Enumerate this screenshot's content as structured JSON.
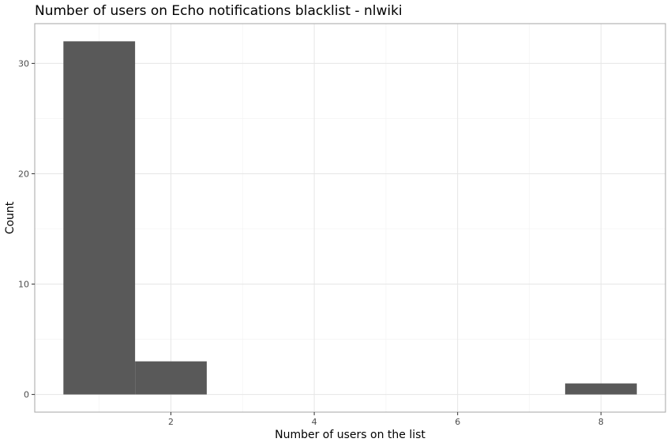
{
  "chart_data": {
    "type": "bar",
    "title": "Number of users on Echo notifications blacklist - nlwiki",
    "xlabel": "Number of users on the list",
    "ylabel": "Count",
    "bins": [
      {
        "x_start": 0.5,
        "x_end": 1.5,
        "count": 32
      },
      {
        "x_start": 1.5,
        "x_end": 2.5,
        "count": 3
      },
      {
        "x_start": 7.5,
        "x_end": 8.5,
        "count": 1
      }
    ],
    "xlim": [
      0.1,
      8.9
    ],
    "ylim": [
      -1.6,
      33.6
    ],
    "x_ticks": [
      2,
      4,
      6,
      8
    ],
    "y_ticks": [
      0,
      10,
      20,
      30
    ],
    "grid": true,
    "bar_color": "#595959",
    "grid_color": "#ebebeb",
    "border_color": "#b3b3b3"
  }
}
